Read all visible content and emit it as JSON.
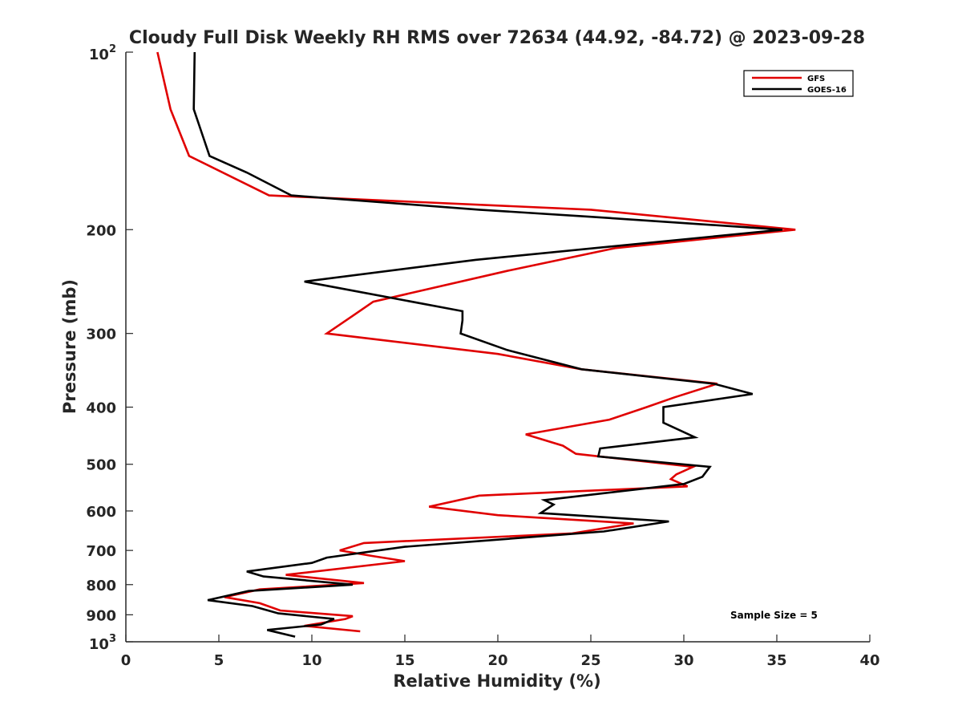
{
  "chart_data": {
    "type": "line",
    "title": "Cloudy Full Disk Weekly RH RMS over 72634 (44.92, -84.72) @ 2023-09-28",
    "xlabel": "Relative Humidity (%)",
    "ylabel": "Pressure (mb)",
    "xlim": [
      0,
      40
    ],
    "ylim": [
      100,
      1000
    ],
    "y_scale": "log",
    "y_reversed": true,
    "x_ticks": [
      "0",
      "5",
      "10",
      "15",
      "20",
      "25",
      "30",
      "35",
      "40"
    ],
    "y_ticks": [
      {
        "value": 100,
        "base": "10",
        "exp": "2"
      },
      {
        "value": 200,
        "label": "200"
      },
      {
        "value": 300,
        "label": "300"
      },
      {
        "value": 400,
        "label": "400"
      },
      {
        "value": 500,
        "label": "500"
      },
      {
        "value": 600,
        "label": "600"
      },
      {
        "value": 700,
        "label": "700"
      },
      {
        "value": 800,
        "label": "800"
      },
      {
        "value": 900,
        "label": "900"
      },
      {
        "value": 1000,
        "base": "10",
        "exp": "3"
      }
    ],
    "grid": false,
    "legend_position": "top-right",
    "annotation": "Sample Size = 5",
    "series": [
      {
        "name": "GFS",
        "color": "#e00000",
        "points": [
          [
            1.7,
            100
          ],
          [
            2.4,
            125
          ],
          [
            3.4,
            150
          ],
          [
            7.7,
            175
          ],
          [
            25,
            185
          ],
          [
            36,
            200
          ],
          [
            26.3,
            215
          ],
          [
            20.5,
            235
          ],
          [
            13.3,
            265
          ],
          [
            12.2,
            280
          ],
          [
            10.8,
            300
          ],
          [
            20,
            325
          ],
          [
            24.5,
            345
          ],
          [
            31.8,
            365
          ],
          [
            29.5,
            385
          ],
          [
            28,
            400
          ],
          [
            26,
            420
          ],
          [
            21.5,
            445
          ],
          [
            23.5,
            465
          ],
          [
            24.2,
            480
          ],
          [
            30.5,
            505
          ],
          [
            29.6,
            520
          ],
          [
            29.3,
            530
          ],
          [
            30.2,
            545
          ],
          [
            19,
            565
          ],
          [
            16.3,
            590
          ],
          [
            20,
            610
          ],
          [
            27.3,
            630
          ],
          [
            24,
            655
          ],
          [
            12.8,
            680
          ],
          [
            11.5,
            700
          ],
          [
            13.2,
            715
          ],
          [
            15,
            730
          ],
          [
            8.6,
            770
          ],
          [
            12.8,
            795
          ],
          [
            7.2,
            815
          ],
          [
            5.3,
            840
          ],
          [
            7.2,
            860
          ],
          [
            8.3,
            885
          ],
          [
            12.2,
            905
          ],
          [
            11.8,
            915
          ],
          [
            9.6,
            940
          ],
          [
            12.6,
            960
          ]
        ]
      },
      {
        "name": "GOES-16",
        "color": "#000000",
        "points": [
          [
            3.7,
            100
          ],
          [
            3.65,
            125
          ],
          [
            4.5,
            150
          ],
          [
            6.5,
            160
          ],
          [
            8.9,
            175
          ],
          [
            19,
            185
          ],
          [
            24.8,
            190
          ],
          [
            35.3,
            200
          ],
          [
            18.8,
            225
          ],
          [
            9.6,
            245
          ],
          [
            18.1,
            275
          ],
          [
            18.1,
            285
          ],
          [
            18,
            300
          ],
          [
            20.5,
            320
          ],
          [
            24.5,
            345
          ],
          [
            31.6,
            365
          ],
          [
            33.7,
            380
          ],
          [
            28.9,
            400
          ],
          [
            28.9,
            425
          ],
          [
            30.6,
            450
          ],
          [
            25.5,
            470
          ],
          [
            25.4,
            485
          ],
          [
            31.4,
            505
          ],
          [
            31,
            525
          ],
          [
            30,
            540
          ],
          [
            22.5,
            575
          ],
          [
            23,
            585
          ],
          [
            22.3,
            605
          ],
          [
            29.2,
            625
          ],
          [
            25.7,
            650
          ],
          [
            15,
            690
          ],
          [
            10.8,
            720
          ],
          [
            10,
            735
          ],
          [
            6.5,
            760
          ],
          [
            7.4,
            775
          ],
          [
            12.2,
            800
          ],
          [
            6.6,
            820
          ],
          [
            4.4,
            850
          ],
          [
            6.8,
            870
          ],
          [
            8.2,
            895
          ],
          [
            11.2,
            915
          ],
          [
            10.5,
            935
          ],
          [
            7.6,
            955
          ],
          [
            9.1,
            980
          ]
        ]
      }
    ]
  }
}
